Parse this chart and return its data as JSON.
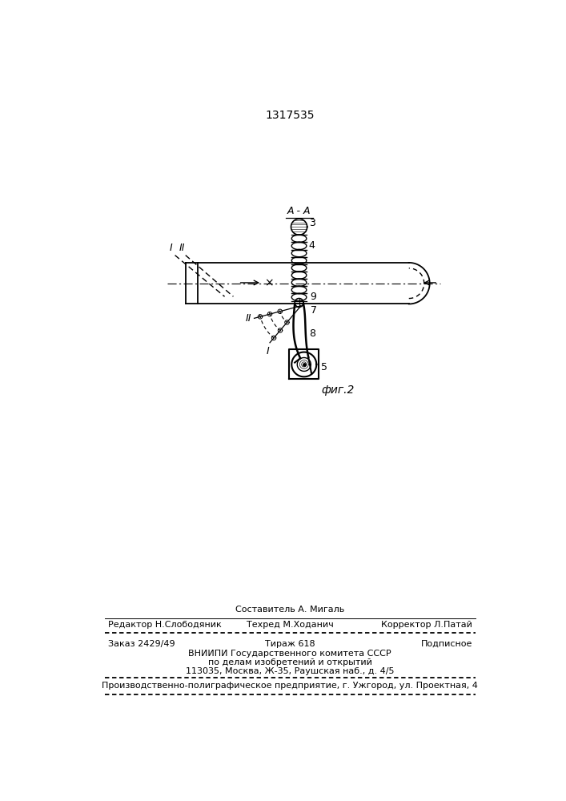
{
  "title_number": "1317535",
  "fig_label": "фиг.2",
  "bg_color": "#ffffff",
  "line_color": "#000000",
  "footer_line0_center": "Составитель А. Мигаль",
  "footer_line1_left": "Редактор Н.Слободяник",
  "footer_line1_center": "Техред М.Ходанич",
  "footer_line1_right": "Корректор Л.Патай",
  "footer_zakaz": "Заказ 2429/49",
  "footer_tirazh": "Тираж 618",
  "footer_podpisnoe": "Подписное",
  "footer_vniiipi": "ВНИИПИ Государственного комитета СССР",
  "footer_po_delam": "по делам изобретений и открытий",
  "footer_address": "113035, Москва, Ж-35, Раушская наб., д. 4/5",
  "footer_production": "Производственно-полиграфическое предприятие, г. Ужгород, ул. Проектная, 4"
}
